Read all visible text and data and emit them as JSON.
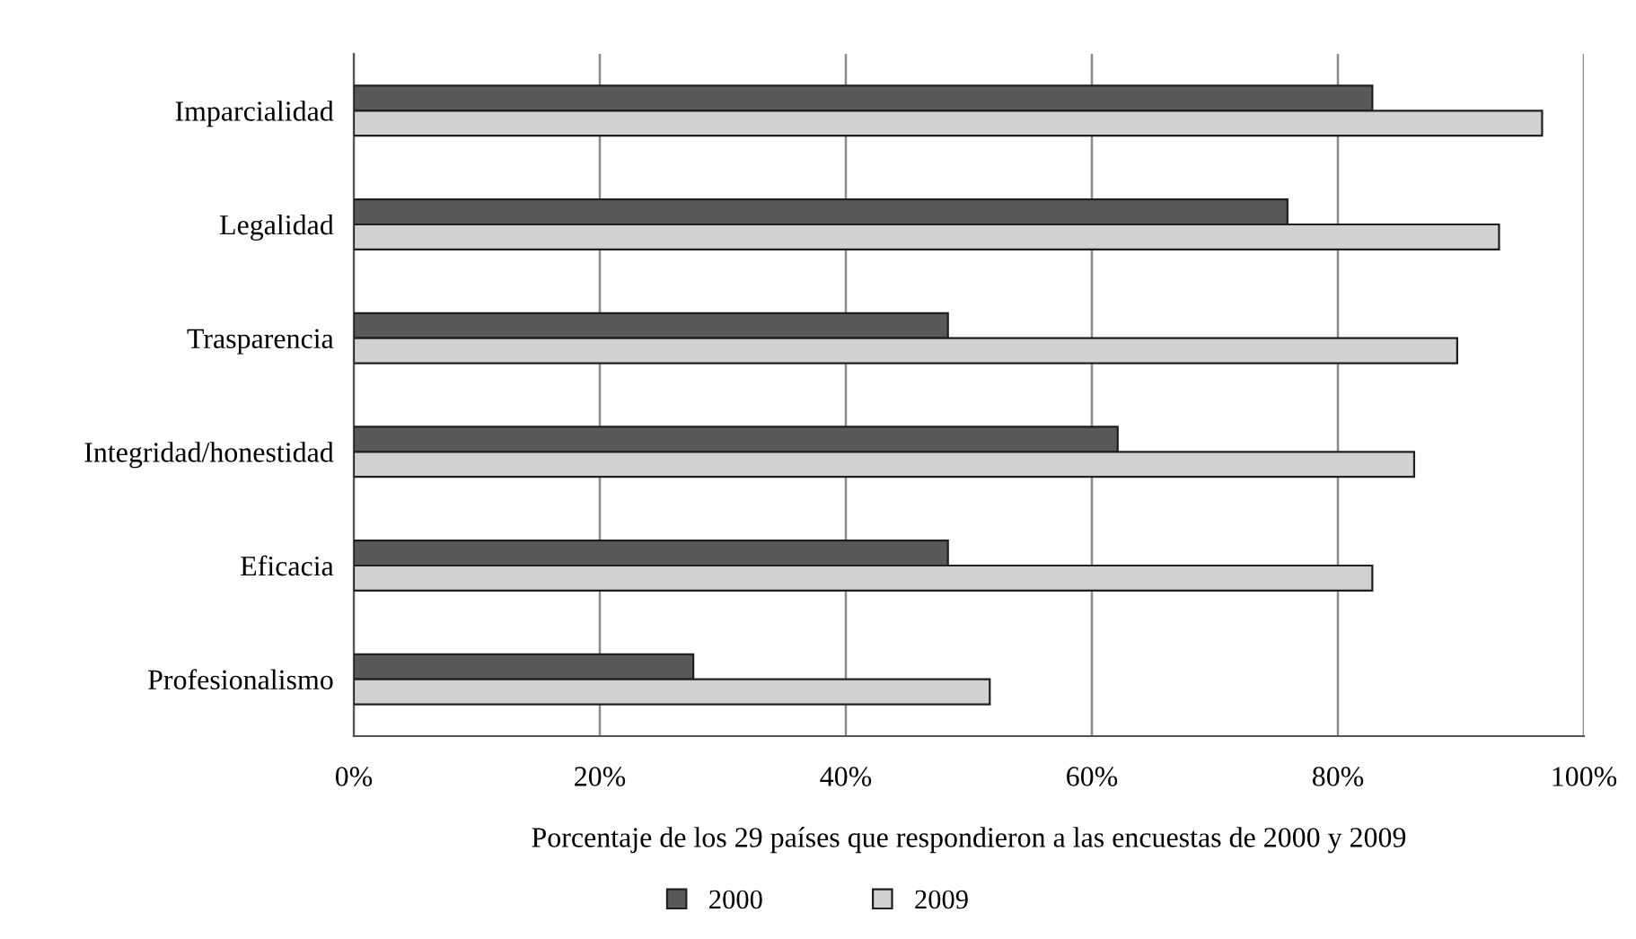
{
  "chart_data": {
    "type": "bar",
    "orientation": "horizontal",
    "categories": [
      "Imparcialidad",
      "Legalidad",
      "Trasparencia",
      "Integridad/honestidad",
      "Eficacia",
      "Profesionalismo"
    ],
    "series": [
      {
        "name": "2000",
        "color": "#58595b",
        "values": [
          82.8,
          75.9,
          48.3,
          62.1,
          48.3,
          27.6
        ]
      },
      {
        "name": "2009",
        "color": "#d1d2d4",
        "values": [
          96.6,
          93.1,
          89.7,
          86.2,
          82.8,
          51.7
        ]
      }
    ],
    "xlim": [
      0,
      100
    ],
    "xticks": [
      {
        "value": 0,
        "label": "0%"
      },
      {
        "value": 20,
        "label": "20%"
      },
      {
        "value": 40,
        "label": "40%"
      },
      {
        "value": 60,
        "label": "60%"
      },
      {
        "value": 80,
        "label": "80%"
      },
      {
        "value": 100,
        "label": "100%"
      }
    ],
    "xlabel": "Porcentaje de los 29 países que respondieron a las encuestas de 2000 y 2009",
    "grid": "x",
    "legend": "bottom"
  }
}
